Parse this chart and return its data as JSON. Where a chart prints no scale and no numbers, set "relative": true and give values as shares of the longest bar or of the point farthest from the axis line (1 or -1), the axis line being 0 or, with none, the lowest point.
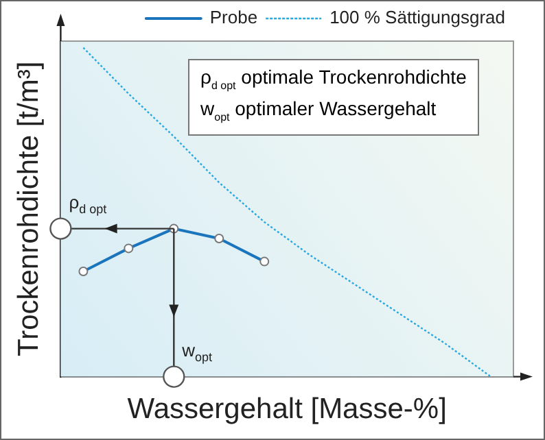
{
  "chart_data": {
    "type": "line",
    "xlabel": "Wassergehalt [Masse-%]",
    "ylabel": "Trockenrohdichte [t/m³]",
    "relative": true,
    "tick_labels": false,
    "grid": false,
    "legend": "top",
    "categories": [
      null,
      null,
      null,
      null,
      null,
      null,
      null,
      null,
      null,
      null
    ],
    "series": [
      {
        "name": "Probe",
        "color": "#1b75bc",
        "marker": "circle",
        "line_style": "solid",
        "values": [
          0.32,
          0.39,
          0.45,
          0.42,
          0.35,
          null,
          null,
          null,
          null,
          null
        ]
      },
      {
        "name": "100 % Sättigungsgrad",
        "color": "#29a8e0",
        "marker": "none",
        "line_style": "dotted",
        "values": [
          1,
          0.86,
          0.73,
          0.59,
          0.47,
          0.37,
          0.28,
          0.19,
          0.1,
          0
        ]
      }
    ],
    "annotations": [
      "ρ$_{d opt}$ optimale Trockenrohdichte",
      "w$_{opt}$ optimaler Wassergehalt",
      "ρ$_{d opt}$",
      "w$_{opt}$"
    ]
  }
}
